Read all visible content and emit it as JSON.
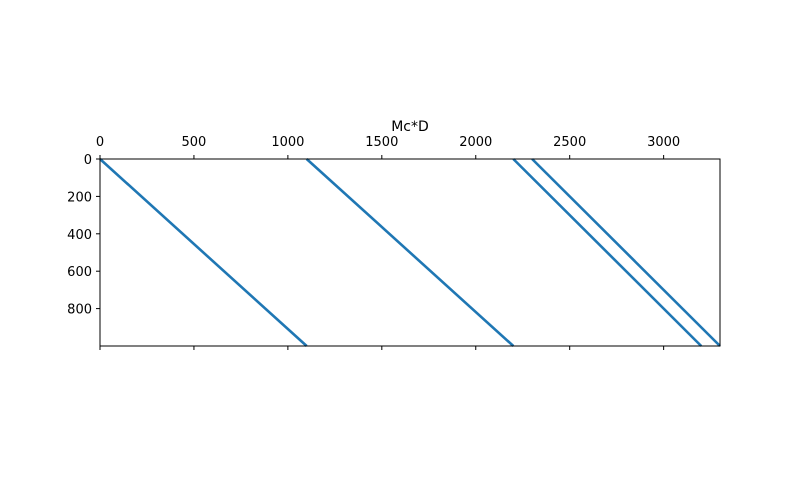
{
  "chart_data": {
    "type": "line",
    "title": "Mc*D",
    "series": [
      {
        "color": "#1f77b4",
        "x": [
          0,
          1100
        ],
        "values": [
          0,
          1000
        ]
      },
      {
        "color": "#1f77b4",
        "x": [
          1100,
          2200
        ],
        "values": [
          0,
          1000
        ]
      },
      {
        "color": "#1f77b4",
        "x": [
          2200,
          3200
        ],
        "values": [
          0,
          1000
        ]
      },
      {
        "color": "#1f77b4",
        "x": [
          2300,
          3300
        ],
        "values": [
          0,
          1000
        ]
      }
    ],
    "xlim": [
      0,
      3300
    ],
    "ylim": [
      1000,
      0
    ],
    "xticks": [
      0,
      500,
      1000,
      1500,
      2000,
      2500,
      3000
    ],
    "yticks": [
      0,
      200,
      400,
      600,
      800
    ]
  }
}
